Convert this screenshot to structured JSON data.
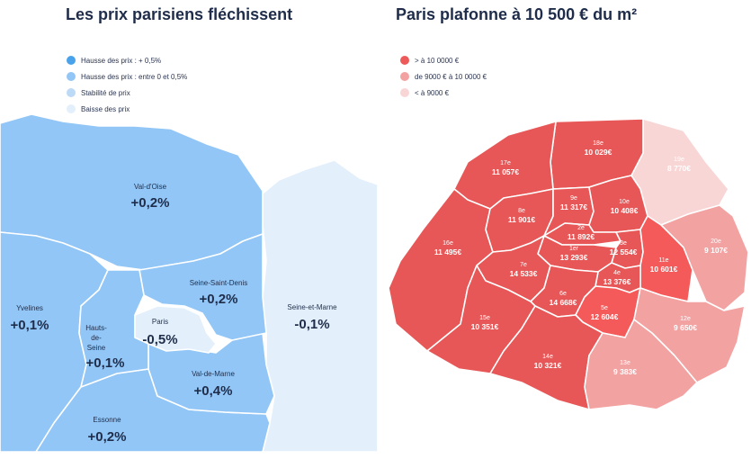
{
  "left": {
    "title": "Les prix parisiens fléchissent",
    "legend": [
      {
        "label": "Hausse des prix : + 0,5%",
        "color": "#4aa3ea"
      },
      {
        "label": "Hausse des prix : entre 0 et 0,5%",
        "color": "#92c6f6"
      },
      {
        "label": "Stabilité de prix",
        "color": "#bcdaf6"
      },
      {
        "label": "Baisse des prix",
        "color": "#e3f0fb"
      }
    ],
    "regions": {
      "val_doise": {
        "name": "Val-d'Oise",
        "value": "+0,2%"
      },
      "yvelines": {
        "name": "Yvelines",
        "value": "+0,1%"
      },
      "hauts_de_seine": {
        "name": "Hauts-\nde-\nSeine",
        "line1": "Hauts-",
        "line2": "de-",
        "line3": "Seine",
        "value": "+0,1%"
      },
      "paris": {
        "name": "Paris",
        "value": "-0,5%"
      },
      "seine_saint_denis": {
        "name": "Seine-Saint-Denis",
        "value": "+0,2%"
      },
      "val_de_marne": {
        "name": "Val-de-Marne",
        "value": "+0,4%"
      },
      "essonne": {
        "name": "Essonne",
        "value": "+0,2%"
      },
      "seine_et_marne": {
        "name": "Seine-et-Marne",
        "value": "-0,1%"
      }
    }
  },
  "right": {
    "title": "Paris plafonne à 10 500 € du m²",
    "legend": [
      {
        "label": "> à 10 0000 €",
        "color": "#ec5a5a"
      },
      {
        "label": "de 9000 € à 10 0000 €",
        "color": "#f3a2a2"
      },
      {
        "label": "< à 9000 €",
        "color": "#f9d6d6"
      }
    ],
    "arrondissements": {
      "a1": {
        "num": "1er",
        "price": "13 293€"
      },
      "a2": {
        "num": "2e",
        "price": "11 892€"
      },
      "a3": {
        "num": "3e",
        "price": "12 554€"
      },
      "a4": {
        "num": "4e",
        "price": "13 376€"
      },
      "a5": {
        "num": "5e",
        "price": "12 604€"
      },
      "a6": {
        "num": "6e",
        "price": "14 668€"
      },
      "a7": {
        "num": "7e",
        "price": "14 533€"
      },
      "a8": {
        "num": "8e",
        "price": "11 901€"
      },
      "a9": {
        "num": "9e",
        "price": "11 317€"
      },
      "a10": {
        "num": "10e",
        "price": "10 408€"
      },
      "a11": {
        "num": "11e",
        "price": "10 601€"
      },
      "a12": {
        "num": "12e",
        "price": "9 650€"
      },
      "a13": {
        "num": "13e",
        "price": "9 383€"
      },
      "a14": {
        "num": "14e",
        "price": "10 321€"
      },
      "a15": {
        "num": "15e",
        "price": "10 351€"
      },
      "a16": {
        "num": "16e",
        "price": "11 495€"
      },
      "a17": {
        "num": "17e",
        "price": "11 057€"
      },
      "a18": {
        "num": "18e",
        "price": "10 029€"
      },
      "a19": {
        "num": "19e",
        "price": "8 770€"
      },
      "a20": {
        "num": "20e",
        "price": "9 107€"
      }
    }
  }
}
